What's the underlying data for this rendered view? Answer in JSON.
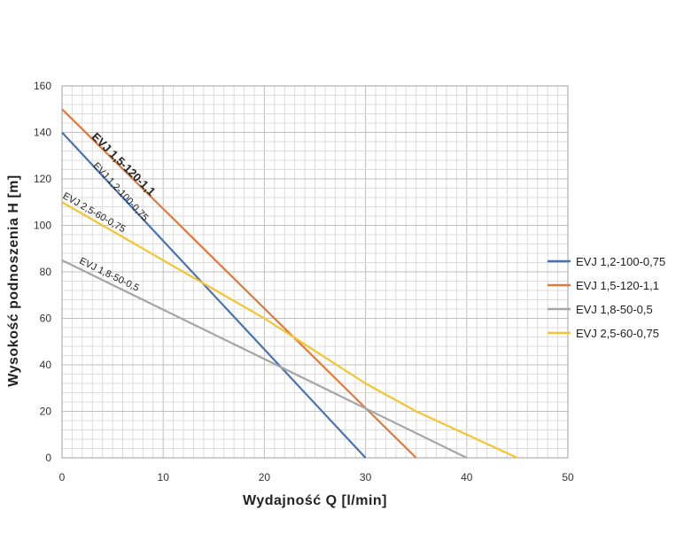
{
  "chart_data": {
    "type": "line",
    "xlabel": "Wydajność Q [l/min]",
    "ylabel": "Wysokość podnoszenia H [m]",
    "xlim": [
      0,
      50
    ],
    "ylim": [
      0,
      160
    ],
    "x_ticks": [
      0,
      10,
      20,
      30,
      40,
      50
    ],
    "y_ticks": [
      0,
      20,
      40,
      60,
      80,
      100,
      120,
      140,
      160
    ],
    "grid": true,
    "legend_position": "right",
    "series": [
      {
        "name": "EVJ 1,2-100-0,75",
        "color": "#4a72b0",
        "x": [
          0,
          30
        ],
        "y": [
          140,
          0
        ]
      },
      {
        "name": "EVJ 1,5-120-1,1",
        "color": "#e07a3c",
        "x": [
          0,
          35
        ],
        "y": [
          150,
          0
        ]
      },
      {
        "name": "EVJ 1,8-50-0,5",
        "color": "#a6a6a6",
        "x": [
          0,
          40
        ],
        "y": [
          85,
          0
        ]
      },
      {
        "name": "EVJ 2,5-60-0,75",
        "color": "#f5c431",
        "x": [
          0,
          10,
          20,
          30,
          35,
          40,
          45
        ],
        "y": [
          110,
          85,
          60,
          32,
          20,
          10,
          0
        ]
      }
    ],
    "annotations": [
      {
        "text": "EVJ 1,5-120-1,1",
        "series": 1,
        "bold": true
      },
      {
        "text": "EVJ 1,2-100-0,75",
        "series": 0,
        "bold": false
      },
      {
        "text": "EVJ 2,5-60-0,75",
        "series": 3,
        "bold": false
      },
      {
        "text": "EVJ 1,8-50-0,5",
        "series": 2,
        "bold": false
      }
    ]
  }
}
